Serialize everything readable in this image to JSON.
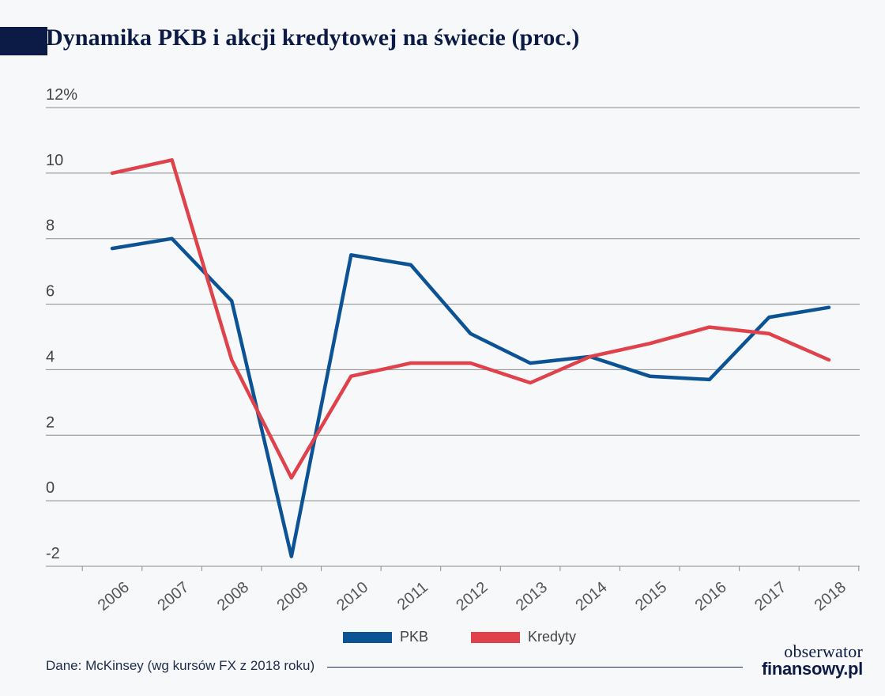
{
  "title_initial_block_color": "#0c1b45",
  "chart_data": {
    "type": "line",
    "title": "Dynamika PKB i akcji kredytowej na świecie (proc.)",
    "xlabel": "",
    "ylabel": "",
    "categories": [
      "2006",
      "2007",
      "2008",
      "2009",
      "2010",
      "2011",
      "2012",
      "2013",
      "2014",
      "2015",
      "2016",
      "2017",
      "2018"
    ],
    "series": [
      {
        "name": "PKB",
        "color": "#0b5394",
        "values": [
          7.7,
          8.0,
          6.1,
          -1.7,
          7.5,
          7.2,
          5.1,
          4.2,
          4.4,
          3.8,
          3.7,
          5.6,
          5.9
        ]
      },
      {
        "name": "Kredyty",
        "color": "#e0424b",
        "values": [
          10.0,
          10.4,
          4.3,
          0.7,
          3.8,
          4.2,
          4.2,
          3.6,
          4.4,
          4.8,
          5.3,
          5.1,
          4.3
        ]
      }
    ],
    "ylim": [
      -2,
      12
    ],
    "yticks": [
      -2,
      0,
      2,
      4,
      6,
      8,
      10,
      12
    ],
    "ytick_labels": [
      "-2",
      "0",
      "2",
      "4",
      "6",
      "8",
      "10",
      "12%"
    ],
    "grid": true,
    "legend_placement": "bottom-center"
  },
  "source": "Dane: McKinsey (wg kursów FX z 2018 roku)",
  "logo": {
    "top": "obserwator",
    "bottom": "finansowy.pl"
  }
}
